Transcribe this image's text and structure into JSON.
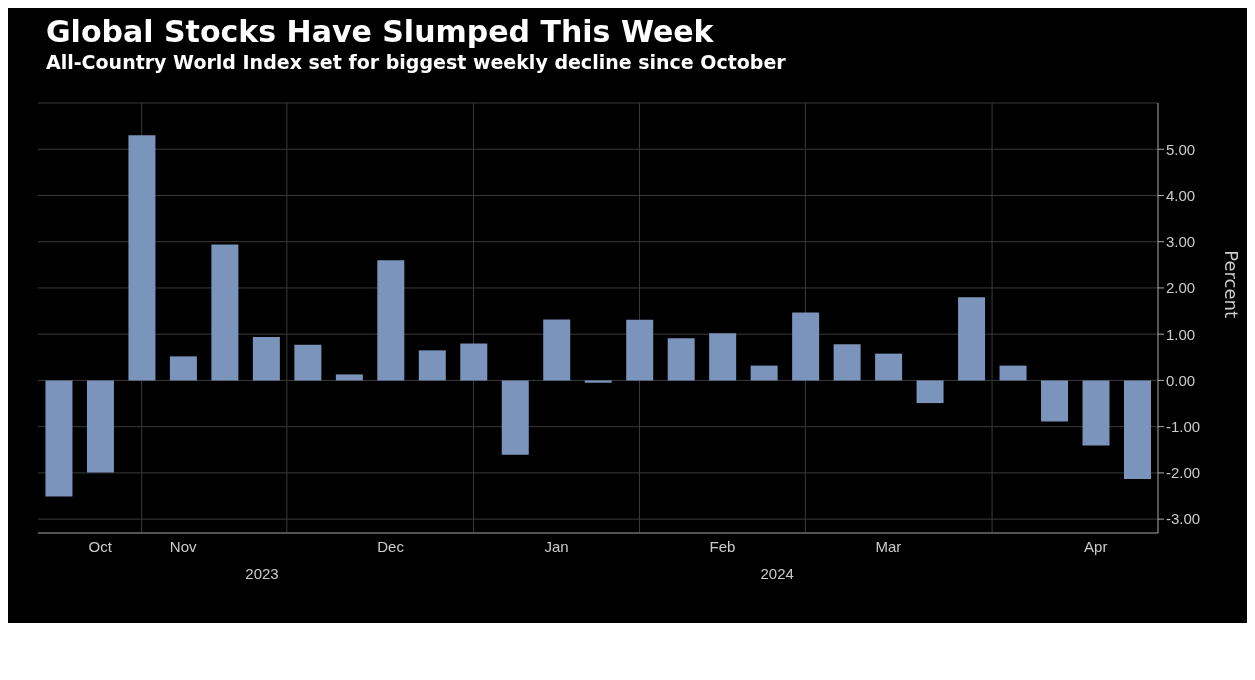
{
  "chart_data": {
    "type": "bar",
    "title": "Global Stocks Have Slumped This Week",
    "subtitle": "All-Country World Index set for biggest weekly decline since October",
    "ylabel": "Percent",
    "categories": [
      null,
      "Oct",
      null,
      "Nov",
      null,
      null,
      null,
      null,
      "Dec",
      null,
      null,
      null,
      "Jan",
      null,
      null,
      null,
      "Feb",
      null,
      null,
      null,
      "Mar",
      null,
      null,
      null,
      null,
      "Apr",
      null
    ],
    "values": [
      -2.51,
      -1.99,
      5.3,
      0.52,
      2.94,
      0.94,
      0.77,
      0.13,
      2.6,
      0.65,
      0.8,
      -1.61,
      1.32,
      -0.05,
      1.31,
      0.91,
      1.02,
      0.32,
      1.47,
      0.78,
      0.58,
      -0.49,
      1.8,
      0.32,
      -0.89,
      -1.41,
      -2.13
    ],
    "color": "#7b94bc",
    "ylim": [
      -3.3,
      6
    ],
    "yticks": [
      {
        "value": -3,
        "label": "-3.00"
      },
      {
        "value": -2,
        "label": "-2.00"
      },
      {
        "value": -1,
        "label": "-1.00"
      },
      {
        "value": 0,
        "label": "0.00"
      },
      {
        "value": 1,
        "label": "1.00"
      },
      {
        "value": 2,
        "label": "2.00"
      },
      {
        "value": 3,
        "label": "3.00"
      },
      {
        "value": 4,
        "label": "4.00"
      },
      {
        "value": 5,
        "label": "5.00"
      }
    ],
    "grid": true,
    "annotations": [
      "2023",
      "2024"
    ]
  }
}
